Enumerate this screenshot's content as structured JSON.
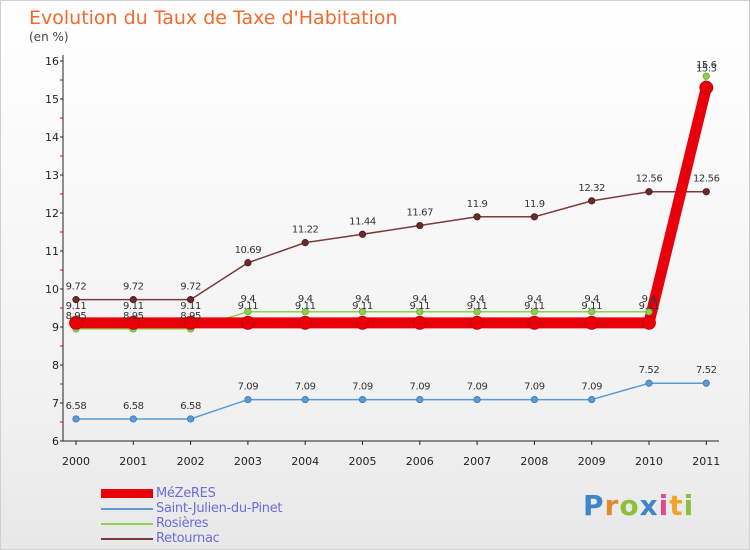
{
  "title": "Evolution du Taux de Taxe d'Habitation",
  "subtitle": "(en %)",
  "logo": [
    "P",
    "r",
    "o",
    "x",
    "i",
    "t",
    "i"
  ],
  "chart_data": {
    "type": "line",
    "x": [
      "2000",
      "2001",
      "2002",
      "2003",
      "2004",
      "2005",
      "2006",
      "2007",
      "2008",
      "2009",
      "2010",
      "2011"
    ],
    "ylim": [
      6,
      16
    ],
    "yticks": [
      "6",
      "7",
      "8",
      "9",
      "10",
      "11",
      "12",
      "13",
      "14",
      "15",
      "16"
    ],
    "grid": false,
    "legend_position": "bottom-left",
    "series": [
      {
        "name": "MéZeRES",
        "color": "#e8000b",
        "values": [
          9.11,
          9.11,
          9.11,
          9.11,
          9.11,
          9.11,
          9.11,
          9.11,
          9.11,
          9.11,
          9.11,
          15.3
        ],
        "labels": [
          "9.11",
          "9.11",
          "9.11",
          "9.11",
          "9.11",
          "9.11",
          "9.11",
          "9.11",
          "9.11",
          "9.11",
          "9.11",
          "15.3"
        ]
      },
      {
        "name": "Saint-Julien-du-Pinet",
        "color": "#5b9bd5",
        "values": [
          6.58,
          6.58,
          6.58,
          7.09,
          7.09,
          7.09,
          7.09,
          7.09,
          7.09,
          7.09,
          7.52,
          7.52
        ],
        "labels": [
          "6.58",
          "6.58",
          "6.58",
          "7.09",
          "7.09",
          "7.09",
          "7.09",
          "7.09",
          "7.09",
          "7.09",
          "7.52",
          "7.52"
        ]
      },
      {
        "name": "Rosières",
        "color": "#8fd14f",
        "values": [
          8.95,
          8.95,
          8.95,
          9.4,
          9.4,
          9.4,
          9.4,
          9.4,
          9.4,
          9.4,
          9.4,
          15.6
        ],
        "labels": [
          "8.95",
          "8.95",
          "8.95",
          "9.4",
          "9.4",
          "9.4",
          "9.4",
          "9.4",
          "9.4",
          "9.4",
          "9.4",
          "15.6"
        ]
      },
      {
        "name": "Retournac",
        "color": "#7a3b3b",
        "values": [
          9.72,
          9.72,
          9.72,
          10.69,
          11.22,
          11.44,
          11.67,
          11.9,
          11.9,
          12.32,
          12.56,
          12.56
        ],
        "labels": [
          "9.72",
          "9.72",
          "9.72",
          "10.69",
          "11.22",
          "11.44",
          "11.67",
          "11.9",
          "11.9",
          "12.32",
          "12.56",
          "12.56"
        ]
      }
    ]
  }
}
